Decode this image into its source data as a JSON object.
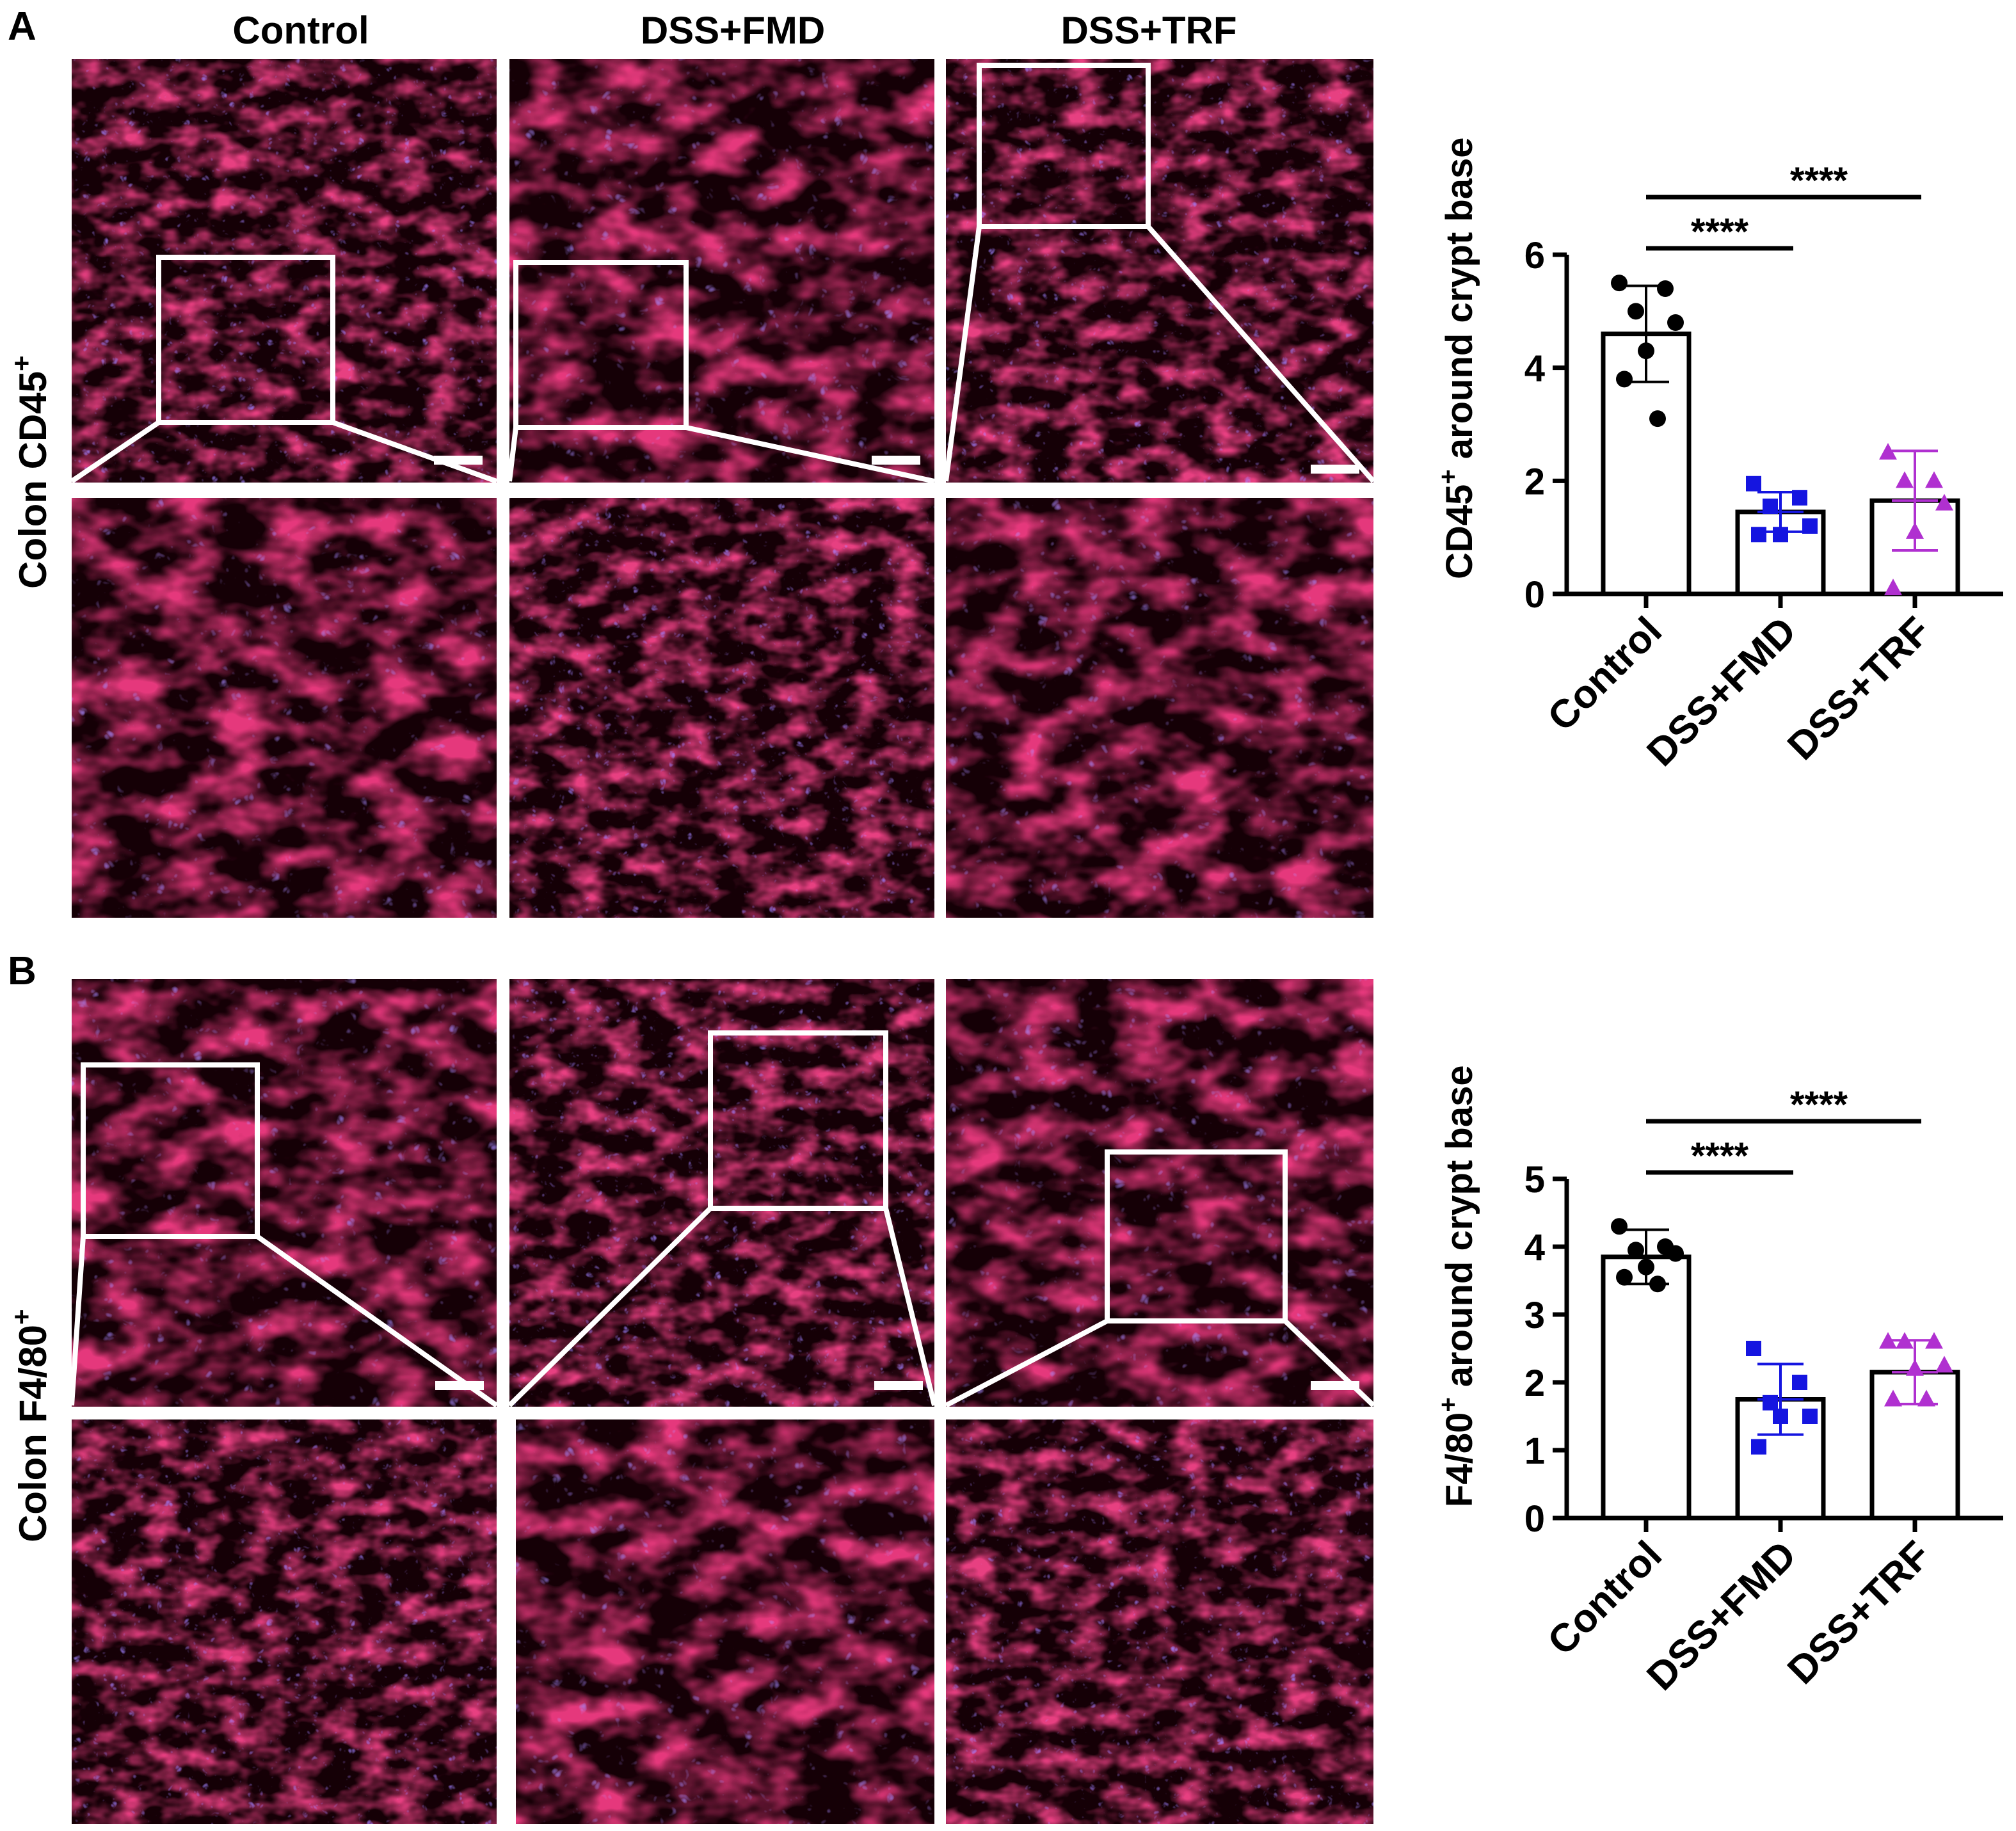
{
  "panels": {
    "A": {
      "letter": "A",
      "row_label": "Colon CD45",
      "row_label_sup": "+"
    },
    "B": {
      "letter": "B",
      "row_label": "Colon F4/80",
      "row_label_sup": "+"
    }
  },
  "column_headers": [
    "Control",
    "DSS+FMD",
    "DSS+TRF"
  ],
  "colors": {
    "stain_red": "#d0102c",
    "stain_blue": "#5a3cff",
    "inset_border": "#ffffff",
    "control": "#000000",
    "fmd": "#1515e0",
    "trf": "#b030d0"
  },
  "chart_data": [
    {
      "type": "bar",
      "panel": "A",
      "ylabel": "CD45",
      "ylabel_sup": "+",
      "ylabel_rest": " around crypt base",
      "ylim": [
        0,
        6
      ],
      "yticks": [
        0,
        2,
        4,
        6
      ],
      "categories": [
        "Control",
        "DSS+FMD",
        "DSS+TRF"
      ],
      "means": [
        4.6,
        1.45,
        1.65
      ],
      "sd": [
        0.85,
        0.35,
        0.88
      ],
      "points": [
        [
          5.5,
          5.4,
          5.0,
          4.8,
          4.3,
          3.8,
          3.1
        ],
        [
          1.95,
          1.7,
          1.55,
          1.2,
          1.05,
          1.05
        ],
        [
          2.5,
          2.0,
          2.0,
          1.6,
          1.1,
          0.1
        ]
      ],
      "markers": [
        "circle",
        "square",
        "triangle"
      ],
      "significance": [
        {
          "from": 0,
          "to": 1,
          "label": "****"
        },
        {
          "from": 0,
          "to": 2,
          "label": "****"
        }
      ]
    },
    {
      "type": "bar",
      "panel": "B",
      "ylabel": "F4/80",
      "ylabel_sup": "+",
      "ylabel_rest": " around crypt base",
      "ylim": [
        0,
        5
      ],
      "yticks": [
        0,
        1,
        2,
        3,
        4,
        5
      ],
      "categories": [
        "Control",
        "DSS+FMD",
        "DSS+TRF"
      ],
      "means": [
        3.85,
        1.75,
        2.15
      ],
      "sd": [
        0.4,
        0.52,
        0.47
      ],
      "points": [
        [
          4.3,
          4.0,
          3.95,
          3.9,
          3.7,
          3.55,
          3.45
        ],
        [
          2.5,
          2.0,
          1.7,
          1.5,
          1.5,
          1.05
        ],
        [
          2.6,
          2.6,
          2.6,
          2.25,
          2.2,
          1.75,
          1.75
        ]
      ],
      "markers": [
        "circle",
        "square",
        "triangle"
      ],
      "significance": [
        {
          "from": 0,
          "to": 1,
          "label": "****"
        },
        {
          "from": 0,
          "to": 2,
          "label": "****"
        }
      ]
    }
  ]
}
